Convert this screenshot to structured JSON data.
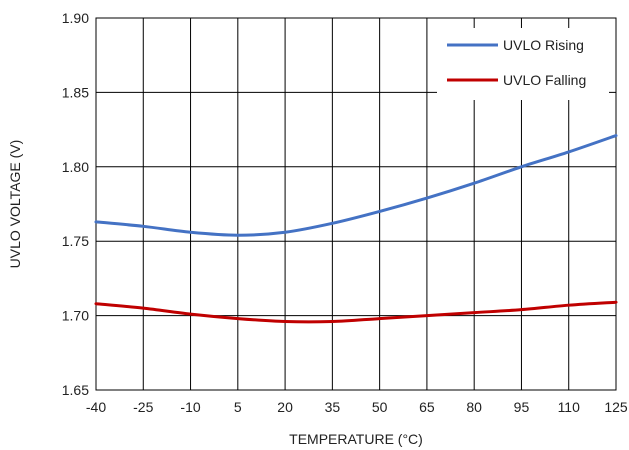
{
  "chart_data": {
    "type": "line",
    "xlabel": "TEMPERATURE (°C)",
    "ylabel": "UVLO VOLTAGE (V)",
    "xlim": [
      -40,
      125
    ],
    "ylim": [
      1.65,
      1.9
    ],
    "x_ticks": [
      -40,
      -25,
      -10,
      5,
      20,
      35,
      50,
      65,
      80,
      95,
      110,
      125
    ],
    "x_tick_labels": [
      "-40",
      "-25",
      "-10",
      "5",
      "20",
      "35",
      "50",
      "65",
      "80",
      "95",
      "110",
      "125"
    ],
    "y_ticks": [
      1.65,
      1.7,
      1.75,
      1.8,
      1.85,
      1.9
    ],
    "y_tick_labels": [
      "1.65",
      "1.70",
      "1.75",
      "1.80",
      "1.85",
      "1.90"
    ],
    "grid": true,
    "legend_position": "top-right",
    "x": [
      -40,
      -25,
      -10,
      5,
      20,
      35,
      50,
      65,
      80,
      95,
      110,
      125
    ],
    "series": [
      {
        "name": "UVLO Rising",
        "color": "#4472C4",
        "values": [
          1.763,
          1.76,
          1.756,
          1.754,
          1.756,
          1.762,
          1.77,
          1.779,
          1.789,
          1.8,
          1.81,
          1.821
        ]
      },
      {
        "name": "UVLO Falling",
        "color": "#C00000",
        "values": [
          1.708,
          1.705,
          1.701,
          1.698,
          1.696,
          1.696,
          1.698,
          1.7,
          1.702,
          1.704,
          1.707,
          1.709
        ]
      }
    ]
  }
}
